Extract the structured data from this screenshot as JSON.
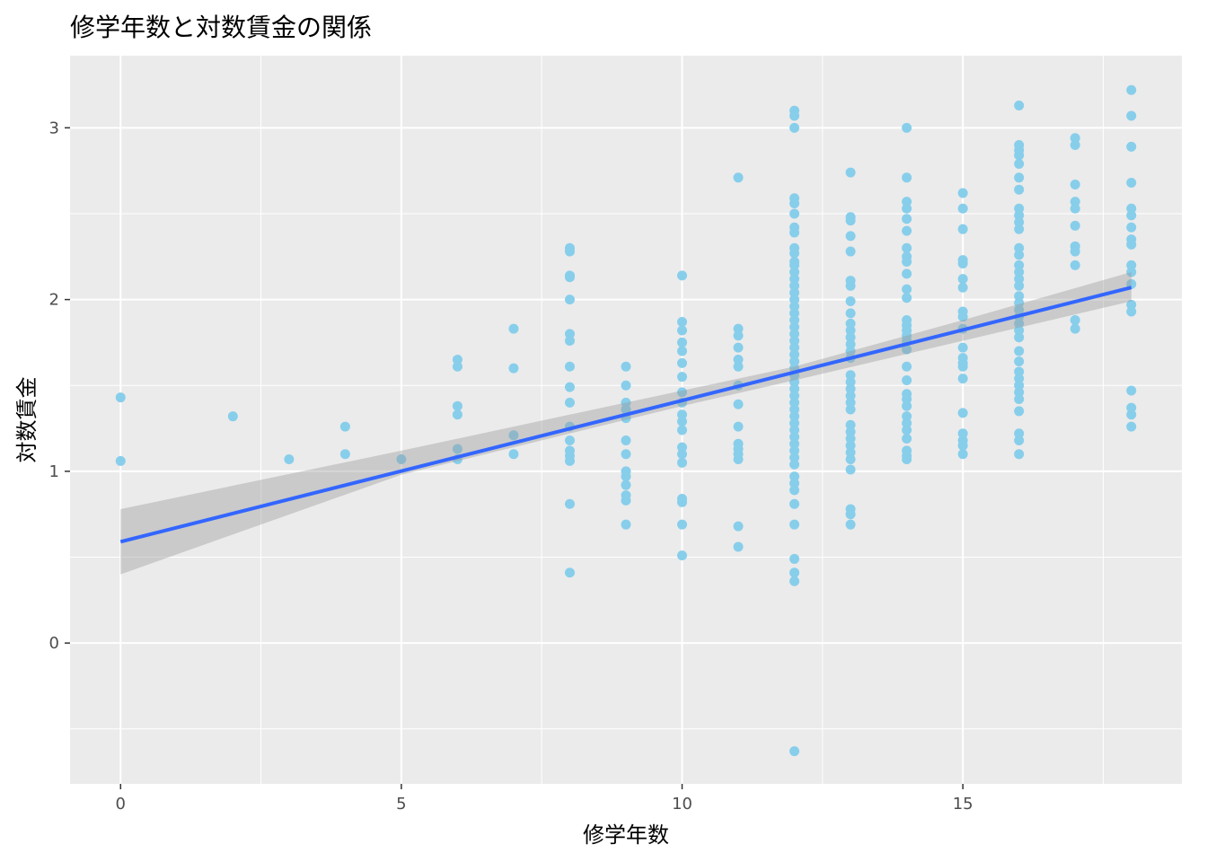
{
  "chart_data": {
    "type": "scatter",
    "title": "修学年数と対数賃金の関係",
    "xlabel": "修学年数",
    "ylabel": "対数賃金",
    "xlim": [
      -0.9,
      18.9
    ],
    "ylim": [
      -0.82,
      3.42
    ],
    "x_ticks": [
      0,
      5,
      10,
      15
    ],
    "y_ticks": [
      0,
      1,
      2,
      3
    ],
    "grid": true,
    "legend": "none",
    "point_color": "#87CEEB",
    "line_color": "#3366FF",
    "band_color": "#999999",
    "panel_background": "#EBEBEB",
    "points": [
      {
        "x": 0,
        "y": 1.43
      },
      {
        "x": 0,
        "y": 1.06
      },
      {
        "x": 2,
        "y": 1.32
      },
      {
        "x": 3,
        "y": 1.07
      },
      {
        "x": 4,
        "y": 1.26
      },
      {
        "x": 4,
        "y": 1.1
      },
      {
        "x": 5,
        "y": 1.07
      },
      {
        "x": 6,
        "y": 1.65
      },
      {
        "x": 6,
        "y": 1.61
      },
      {
        "x": 6,
        "y": 1.38
      },
      {
        "x": 6,
        "y": 1.33
      },
      {
        "x": 6,
        "y": 1.13
      },
      {
        "x": 6,
        "y": 1.07
      },
      {
        "x": 7,
        "y": 1.83
      },
      {
        "x": 7,
        "y": 1.6
      },
      {
        "x": 7,
        "y": 1.21
      },
      {
        "x": 7,
        "y": 1.1
      },
      {
        "x": 8,
        "y": 2.3
      },
      {
        "x": 8,
        "y": 2.28
      },
      {
        "x": 8,
        "y": 2.14
      },
      {
        "x": 8,
        "y": 2.13
      },
      {
        "x": 8,
        "y": 2.0
      },
      {
        "x": 8,
        "y": 1.8
      },
      {
        "x": 8,
        "y": 1.76
      },
      {
        "x": 8,
        "y": 1.61
      },
      {
        "x": 8,
        "y": 1.49
      },
      {
        "x": 8,
        "y": 1.4
      },
      {
        "x": 8,
        "y": 1.26
      },
      {
        "x": 8,
        "y": 1.18
      },
      {
        "x": 8,
        "y": 1.12
      },
      {
        "x": 8,
        "y": 1.09
      },
      {
        "x": 8,
        "y": 1.06
      },
      {
        "x": 8,
        "y": 0.81
      },
      {
        "x": 8,
        "y": 0.41
      },
      {
        "x": 9,
        "y": 1.61
      },
      {
        "x": 9,
        "y": 1.5
      },
      {
        "x": 9,
        "y": 1.4
      },
      {
        "x": 9,
        "y": 1.36
      },
      {
        "x": 9,
        "y": 1.31
      },
      {
        "x": 9,
        "y": 1.18
      },
      {
        "x": 9,
        "y": 1.1
      },
      {
        "x": 9,
        "y": 1.0
      },
      {
        "x": 9,
        "y": 0.97
      },
      {
        "x": 9,
        "y": 0.92
      },
      {
        "x": 9,
        "y": 0.86
      },
      {
        "x": 9,
        "y": 0.83
      },
      {
        "x": 9,
        "y": 0.69
      },
      {
        "x": 10,
        "y": 2.14
      },
      {
        "x": 10,
        "y": 1.87
      },
      {
        "x": 10,
        "y": 1.82
      },
      {
        "x": 10,
        "y": 1.75
      },
      {
        "x": 10,
        "y": 1.7
      },
      {
        "x": 10,
        "y": 1.63
      },
      {
        "x": 10,
        "y": 1.55
      },
      {
        "x": 10,
        "y": 1.46
      },
      {
        "x": 10,
        "y": 1.4
      },
      {
        "x": 10,
        "y": 1.33
      },
      {
        "x": 10,
        "y": 1.29
      },
      {
        "x": 10,
        "y": 1.24
      },
      {
        "x": 10,
        "y": 1.14
      },
      {
        "x": 10,
        "y": 1.1
      },
      {
        "x": 10,
        "y": 1.05
      },
      {
        "x": 10,
        "y": 0.84
      },
      {
        "x": 10,
        "y": 0.82
      },
      {
        "x": 10,
        "y": 0.69
      },
      {
        "x": 10,
        "y": 0.51
      },
      {
        "x": 11,
        "y": 2.71
      },
      {
        "x": 11,
        "y": 1.83
      },
      {
        "x": 11,
        "y": 1.79
      },
      {
        "x": 11,
        "y": 1.72
      },
      {
        "x": 11,
        "y": 1.65
      },
      {
        "x": 11,
        "y": 1.61
      },
      {
        "x": 11,
        "y": 1.5
      },
      {
        "x": 11,
        "y": 1.39
      },
      {
        "x": 11,
        "y": 1.26
      },
      {
        "x": 11,
        "y": 1.16
      },
      {
        "x": 11,
        "y": 1.13
      },
      {
        "x": 11,
        "y": 1.1
      },
      {
        "x": 11,
        "y": 1.07
      },
      {
        "x": 11,
        "y": 0.68
      },
      {
        "x": 11,
        "y": 0.56
      },
      {
        "x": 12,
        "y": 3.1
      },
      {
        "x": 12,
        "y": 3.07
      },
      {
        "x": 12,
        "y": 3.0
      },
      {
        "x": 12,
        "y": 2.59
      },
      {
        "x": 12,
        "y": 2.56
      },
      {
        "x": 12,
        "y": 2.5
      },
      {
        "x": 12,
        "y": 2.42
      },
      {
        "x": 12,
        "y": 2.39
      },
      {
        "x": 12,
        "y": 2.3
      },
      {
        "x": 12,
        "y": 2.27
      },
      {
        "x": 12,
        "y": 2.22
      },
      {
        "x": 12,
        "y": 2.2
      },
      {
        "x": 12,
        "y": 2.16
      },
      {
        "x": 12,
        "y": 2.12
      },
      {
        "x": 12,
        "y": 2.08
      },
      {
        "x": 12,
        "y": 2.04
      },
      {
        "x": 12,
        "y": 2.0
      },
      {
        "x": 12,
        "y": 1.96
      },
      {
        "x": 12,
        "y": 1.92
      },
      {
        "x": 12,
        "y": 1.88
      },
      {
        "x": 12,
        "y": 1.84
      },
      {
        "x": 12,
        "y": 1.8
      },
      {
        "x": 12,
        "y": 1.76
      },
      {
        "x": 12,
        "y": 1.72
      },
      {
        "x": 12,
        "y": 1.68
      },
      {
        "x": 12,
        "y": 1.64
      },
      {
        "x": 12,
        "y": 1.6
      },
      {
        "x": 12,
        "y": 1.56
      },
      {
        "x": 12,
        "y": 1.52
      },
      {
        "x": 12,
        "y": 1.48
      },
      {
        "x": 12,
        "y": 1.44
      },
      {
        "x": 12,
        "y": 1.4
      },
      {
        "x": 12,
        "y": 1.36
      },
      {
        "x": 12,
        "y": 1.32
      },
      {
        "x": 12,
        "y": 1.28
      },
      {
        "x": 12,
        "y": 1.24
      },
      {
        "x": 12,
        "y": 1.2
      },
      {
        "x": 12,
        "y": 1.16
      },
      {
        "x": 12,
        "y": 1.12
      },
      {
        "x": 12,
        "y": 1.08
      },
      {
        "x": 12,
        "y": 1.04
      },
      {
        "x": 12,
        "y": 0.97
      },
      {
        "x": 12,
        "y": 0.93
      },
      {
        "x": 12,
        "y": 0.89
      },
      {
        "x": 12,
        "y": 0.81
      },
      {
        "x": 12,
        "y": 0.69
      },
      {
        "x": 12,
        "y": 0.49
      },
      {
        "x": 12,
        "y": 0.41
      },
      {
        "x": 12,
        "y": 0.36
      },
      {
        "x": 12,
        "y": -0.63
      },
      {
        "x": 13,
        "y": 2.74
      },
      {
        "x": 13,
        "y": 2.48
      },
      {
        "x": 13,
        "y": 2.46
      },
      {
        "x": 13,
        "y": 2.37
      },
      {
        "x": 13,
        "y": 2.28
      },
      {
        "x": 13,
        "y": 2.11
      },
      {
        "x": 13,
        "y": 2.08
      },
      {
        "x": 13,
        "y": 1.99
      },
      {
        "x": 13,
        "y": 1.92
      },
      {
        "x": 13,
        "y": 1.86
      },
      {
        "x": 13,
        "y": 1.82
      },
      {
        "x": 13,
        "y": 1.78
      },
      {
        "x": 13,
        "y": 1.74
      },
      {
        "x": 13,
        "y": 1.7
      },
      {
        "x": 13,
        "y": 1.66
      },
      {
        "x": 13,
        "y": 1.56
      },
      {
        "x": 13,
        "y": 1.52
      },
      {
        "x": 13,
        "y": 1.48
      },
      {
        "x": 13,
        "y": 1.44
      },
      {
        "x": 13,
        "y": 1.4
      },
      {
        "x": 13,
        "y": 1.36
      },
      {
        "x": 13,
        "y": 1.27
      },
      {
        "x": 13,
        "y": 1.23
      },
      {
        "x": 13,
        "y": 1.19
      },
      {
        "x": 13,
        "y": 1.15
      },
      {
        "x": 13,
        "y": 1.11
      },
      {
        "x": 13,
        "y": 1.07
      },
      {
        "x": 13,
        "y": 1.01
      },
      {
        "x": 13,
        "y": 0.78
      },
      {
        "x": 13,
        "y": 0.75
      },
      {
        "x": 13,
        "y": 0.69
      },
      {
        "x": 14,
        "y": 3.0
      },
      {
        "x": 14,
        "y": 2.71
      },
      {
        "x": 14,
        "y": 2.57
      },
      {
        "x": 14,
        "y": 2.53
      },
      {
        "x": 14,
        "y": 2.47
      },
      {
        "x": 14,
        "y": 2.4
      },
      {
        "x": 14,
        "y": 2.3
      },
      {
        "x": 14,
        "y": 2.25
      },
      {
        "x": 14,
        "y": 2.22
      },
      {
        "x": 14,
        "y": 2.15
      },
      {
        "x": 14,
        "y": 2.06
      },
      {
        "x": 14,
        "y": 2.01
      },
      {
        "x": 14,
        "y": 1.88
      },
      {
        "x": 14,
        "y": 1.85
      },
      {
        "x": 14,
        "y": 1.82
      },
      {
        "x": 14,
        "y": 1.79
      },
      {
        "x": 14,
        "y": 1.76
      },
      {
        "x": 14,
        "y": 1.71
      },
      {
        "x": 14,
        "y": 1.61
      },
      {
        "x": 14,
        "y": 1.53
      },
      {
        "x": 14,
        "y": 1.45
      },
      {
        "x": 14,
        "y": 1.42
      },
      {
        "x": 14,
        "y": 1.38
      },
      {
        "x": 14,
        "y": 1.32
      },
      {
        "x": 14,
        "y": 1.28
      },
      {
        "x": 14,
        "y": 1.24
      },
      {
        "x": 14,
        "y": 1.19
      },
      {
        "x": 14,
        "y": 1.12
      },
      {
        "x": 14,
        "y": 1.09
      },
      {
        "x": 14,
        "y": 1.07
      },
      {
        "x": 15,
        "y": 2.62
      },
      {
        "x": 15,
        "y": 2.53
      },
      {
        "x": 15,
        "y": 2.41
      },
      {
        "x": 15,
        "y": 2.23
      },
      {
        "x": 15,
        "y": 2.21
      },
      {
        "x": 15,
        "y": 2.12
      },
      {
        "x": 15,
        "y": 2.07
      },
      {
        "x": 15,
        "y": 1.93
      },
      {
        "x": 15,
        "y": 1.9
      },
      {
        "x": 15,
        "y": 1.83
      },
      {
        "x": 15,
        "y": 1.72
      },
      {
        "x": 15,
        "y": 1.66
      },
      {
        "x": 15,
        "y": 1.63
      },
      {
        "x": 15,
        "y": 1.61
      },
      {
        "x": 15,
        "y": 1.54
      },
      {
        "x": 15,
        "y": 1.34
      },
      {
        "x": 15,
        "y": 1.22
      },
      {
        "x": 15,
        "y": 1.18
      },
      {
        "x": 15,
        "y": 1.15
      },
      {
        "x": 15,
        "y": 1.1
      },
      {
        "x": 16,
        "y": 3.13
      },
      {
        "x": 16,
        "y": 2.9
      },
      {
        "x": 16,
        "y": 2.87
      },
      {
        "x": 16,
        "y": 2.84
      },
      {
        "x": 16,
        "y": 2.79
      },
      {
        "x": 16,
        "y": 2.71
      },
      {
        "x": 16,
        "y": 2.64
      },
      {
        "x": 16,
        "y": 2.53
      },
      {
        "x": 16,
        "y": 2.49
      },
      {
        "x": 16,
        "y": 2.45
      },
      {
        "x": 16,
        "y": 2.41
      },
      {
        "x": 16,
        "y": 2.3
      },
      {
        "x": 16,
        "y": 2.26
      },
      {
        "x": 16,
        "y": 2.2
      },
      {
        "x": 16,
        "y": 2.16
      },
      {
        "x": 16,
        "y": 2.12
      },
      {
        "x": 16,
        "y": 2.08
      },
      {
        "x": 16,
        "y": 2.02
      },
      {
        "x": 16,
        "y": 1.98
      },
      {
        "x": 16,
        "y": 1.94
      },
      {
        "x": 16,
        "y": 1.9
      },
      {
        "x": 16,
        "y": 1.86
      },
      {
        "x": 16,
        "y": 1.82
      },
      {
        "x": 16,
        "y": 1.78
      },
      {
        "x": 16,
        "y": 1.7
      },
      {
        "x": 16,
        "y": 1.64
      },
      {
        "x": 16,
        "y": 1.58
      },
      {
        "x": 16,
        "y": 1.54
      },
      {
        "x": 16,
        "y": 1.5
      },
      {
        "x": 16,
        "y": 1.46
      },
      {
        "x": 16,
        "y": 1.42
      },
      {
        "x": 16,
        "y": 1.35
      },
      {
        "x": 16,
        "y": 1.22
      },
      {
        "x": 16,
        "y": 1.18
      },
      {
        "x": 16,
        "y": 1.1
      },
      {
        "x": 17,
        "y": 2.94
      },
      {
        "x": 17,
        "y": 2.9
      },
      {
        "x": 17,
        "y": 2.67
      },
      {
        "x": 17,
        "y": 2.57
      },
      {
        "x": 17,
        "y": 2.53
      },
      {
        "x": 17,
        "y": 2.43
      },
      {
        "x": 17,
        "y": 2.31
      },
      {
        "x": 17,
        "y": 2.28
      },
      {
        "x": 17,
        "y": 2.2
      },
      {
        "x": 17,
        "y": 1.88
      },
      {
        "x": 17,
        "y": 1.83
      },
      {
        "x": 18,
        "y": 3.22
      },
      {
        "x": 18,
        "y": 3.07
      },
      {
        "x": 18,
        "y": 2.89
      },
      {
        "x": 18,
        "y": 2.68
      },
      {
        "x": 18,
        "y": 2.53
      },
      {
        "x": 18,
        "y": 2.49
      },
      {
        "x": 18,
        "y": 2.42
      },
      {
        "x": 18,
        "y": 2.35
      },
      {
        "x": 18,
        "y": 2.32
      },
      {
        "x": 18,
        "y": 2.2
      },
      {
        "x": 18,
        "y": 2.16
      },
      {
        "x": 18,
        "y": 2.09
      },
      {
        "x": 18,
        "y": 1.97
      },
      {
        "x": 18,
        "y": 1.93
      },
      {
        "x": 18,
        "y": 1.47
      },
      {
        "x": 18,
        "y": 1.37
      },
      {
        "x": 18,
        "y": 1.33
      },
      {
        "x": 18,
        "y": 1.26
      }
    ],
    "fit_line": {
      "x": [
        0,
        18
      ],
      "y": [
        0.59,
        2.07
      ]
    },
    "confidence_band": {
      "x": [
        0,
        5,
        10,
        12,
        15,
        18
      ],
      "lower": [
        0.4,
        0.98,
        1.38,
        1.53,
        1.76,
        1.99
      ],
      "upper": [
        0.78,
        1.12,
        1.47,
        1.61,
        1.88,
        2.16
      ]
    }
  }
}
